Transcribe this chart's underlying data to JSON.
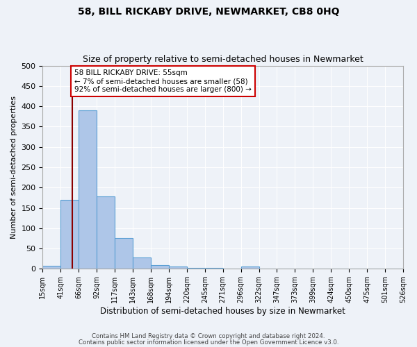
{
  "title": "58, BILL RICKABY DRIVE, NEWMARKET, CB8 0HQ",
  "subtitle": "Size of property relative to semi-detached houses in Newmarket",
  "xlabel": "Distribution of semi-detached houses by size in Newmarket",
  "ylabel": "Number of semi-detached properties",
  "footnote1": "Contains HM Land Registry data © Crown copyright and database right 2024.",
  "footnote2": "Contains public sector information licensed under the Open Government Licence v3.0.",
  "bin_labels": [
    "15sqm",
    "41sqm",
    "66sqm",
    "92sqm",
    "117sqm",
    "143sqm",
    "168sqm",
    "194sqm",
    "220sqm",
    "245sqm",
    "271sqm",
    "296sqm",
    "322sqm",
    "347sqm",
    "373sqm",
    "399sqm",
    "424sqm",
    "450sqm",
    "475sqm",
    "501sqm",
    "526sqm"
  ],
  "counts": [
    8,
    170,
    390,
    178,
    75,
    28,
    9,
    5,
    3,
    2,
    1,
    5,
    0,
    0,
    0,
    0,
    0,
    0,
    0,
    0
  ],
  "bar_color": "#aec6e8",
  "bar_edge_color": "#5a9fd4",
  "property_size_bin": 1.65,
  "property_line_color": "#8b0000",
  "annotation_text": "58 BILL RICKABY DRIVE: 55sqm\n← 7% of semi-detached houses are smaller (58)\n92% of semi-detached houses are larger (800) →",
  "annotation_box_color": "#ffffff",
  "annotation_border_color": "#cc0000",
  "ylim": [
    0,
    500
  ],
  "yticks": [
    0,
    50,
    100,
    150,
    200,
    250,
    300,
    350,
    400,
    450,
    500
  ],
  "background_color": "#eef2f8"
}
